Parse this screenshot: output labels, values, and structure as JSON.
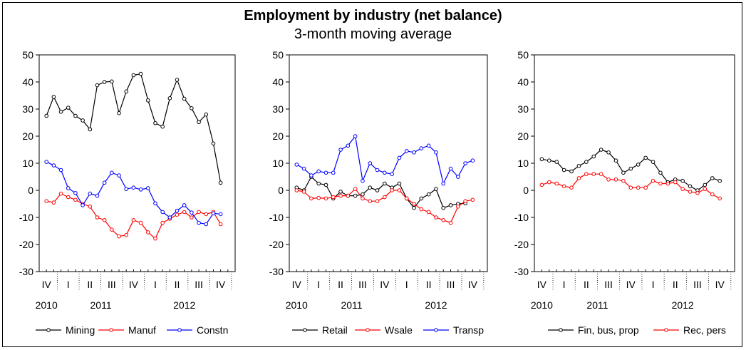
{
  "title": "Employment by industry (net balance)",
  "subtitle": "3-month moving average",
  "colors": {
    "black": "#000000",
    "red": "#ff0000",
    "blue": "#0000ff"
  },
  "chart_data": [
    {
      "type": "line",
      "ylim": [
        -30,
        50
      ],
      "yticks": [
        50,
        40,
        30,
        20,
        10,
        0,
        -10,
        -20,
        -30
      ],
      "x_range": [
        0,
        27
      ],
      "quarter_labels": [
        {
          "label": "IV",
          "x": 1
        },
        {
          "label": "I",
          "x": 4
        },
        {
          "label": "II",
          "x": 7
        },
        {
          "label": "III",
          "x": 10
        },
        {
          "label": "IV",
          "x": 13
        },
        {
          "label": "I",
          "x": 16
        },
        {
          "label": "II",
          "x": 19
        },
        {
          "label": "III",
          "x": 22
        },
        {
          "label": "IV",
          "x": 25
        }
      ],
      "year_labels": [
        {
          "label": "2010",
          "x": 1
        },
        {
          "label": "2011",
          "x": 8.5
        },
        {
          "label": "2012",
          "x": 20
        }
      ],
      "series": [
        {
          "name": "Mining",
          "color": "#000000",
          "values": [
            27.5,
            34.5,
            29,
            30.5,
            27.5,
            25.8,
            22.5,
            38.8,
            40,
            40.2,
            28.5,
            36.5,
            42.5,
            43,
            33.2,
            24.8,
            23.5,
            34,
            40.8,
            33.8,
            30.3,
            25.2,
            28,
            17.3,
            2.8
          ]
        },
        {
          "name": "Manuf",
          "color": "#ff0000",
          "values": [
            -4,
            -4.5,
            -1.2,
            -2.5,
            -3.5,
            -5,
            -6,
            -10,
            -11,
            -14.5,
            -17,
            -16.5,
            -11,
            -12,
            -15.5,
            -17.8,
            -12,
            -10.5,
            -9,
            -8,
            -10,
            -8,
            -8.8,
            -8,
            -12.5
          ]
        },
        {
          "name": "Constn",
          "color": "#0000ff",
          "values": [
            10.5,
            9.2,
            7.5,
            0.8,
            -1,
            -5.5,
            -1.2,
            -2,
            2.8,
            6.5,
            5.5,
            0.5,
            1,
            0.3,
            0.8,
            -4.8,
            -8,
            -10,
            -7.5,
            -5.5,
            -8.2,
            -12,
            -12.5,
            -8.5,
            -8.8
          ]
        }
      ]
    },
    {
      "type": "line",
      "ylim": [
        -30,
        50
      ],
      "yticks": [
        50,
        40,
        30,
        20,
        10,
        0,
        -10,
        -20,
        -30
      ],
      "x_range": [
        0,
        27
      ],
      "quarter_labels": [
        {
          "label": "IV",
          "x": 1
        },
        {
          "label": "I",
          "x": 4
        },
        {
          "label": "II",
          "x": 7
        },
        {
          "label": "III",
          "x": 10
        },
        {
          "label": "IV",
          "x": 13
        },
        {
          "label": "I",
          "x": 16
        },
        {
          "label": "II",
          "x": 19
        },
        {
          "label": "III",
          "x": 22
        },
        {
          "label": "IV",
          "x": 25
        }
      ],
      "year_labels": [
        {
          "label": "2010",
          "x": 1
        },
        {
          "label": "2011",
          "x": 8.5
        },
        {
          "label": "2012",
          "x": 20
        }
      ],
      "series": [
        {
          "name": "Retail",
          "color": "#000000",
          "values": [
            1,
            0,
            5,
            2.5,
            2,
            -3,
            -0.5,
            -2,
            -2,
            -1.5,
            1,
            0,
            2.5,
            1,
            2.5,
            -3,
            -6.5,
            -3,
            -1.5,
            0.5,
            -6.5,
            -5.5,
            -5,
            -4.8
          ]
        },
        {
          "name": "Wsale",
          "color": "#ff0000",
          "values": [
            0,
            -0.5,
            -3,
            -2.8,
            -3,
            -2.5,
            -2,
            -2,
            0.5,
            -3,
            -4,
            -4,
            -2.5,
            0,
            0,
            -3,
            -5,
            -7,
            -8,
            -10,
            -11,
            -12,
            -6,
            -4,
            -3.5
          ]
        },
        {
          "name": "Transp",
          "color": "#0000ff",
          "values": [
            9.5,
            8,
            5.5,
            7,
            6.5,
            6.5,
            15,
            16.5,
            20,
            3.5,
            10,
            7.5,
            6.5,
            6,
            12,
            14.5,
            14,
            15.5,
            16.5,
            14,
            2.5,
            8,
            5,
            10,
            11
          ]
        }
      ]
    },
    {
      "type": "line",
      "ylim": [
        -30,
        50
      ],
      "yticks": [
        50,
        40,
        30,
        20,
        10,
        0,
        -10,
        -20,
        -30
      ],
      "x_range": [
        0,
        27
      ],
      "quarter_labels": [
        {
          "label": "IV",
          "x": 1
        },
        {
          "label": "I",
          "x": 4
        },
        {
          "label": "II",
          "x": 7
        },
        {
          "label": "III",
          "x": 10
        },
        {
          "label": "IV",
          "x": 13
        },
        {
          "label": "I",
          "x": 16
        },
        {
          "label": "II",
          "x": 19
        },
        {
          "label": "III",
          "x": 22
        },
        {
          "label": "IV",
          "x": 25
        }
      ],
      "year_labels": [
        {
          "label": "2010",
          "x": 1
        },
        {
          "label": "2011",
          "x": 8.5
        },
        {
          "label": "2012",
          "x": 20
        }
      ],
      "series": [
        {
          "name": "Fin, bus, prop",
          "color": "#000000",
          "values": [
            11.5,
            11,
            10.5,
            7.5,
            7,
            9,
            10.5,
            12.5,
            15,
            14,
            11,
            6.5,
            8,
            9.5,
            12,
            10.5,
            6.5,
            3,
            4,
            3.5,
            1.5,
            0,
            2,
            4.5,
            3.5
          ]
        },
        {
          "name": "Rec, pers",
          "color": "#ff0000",
          "values": [
            2,
            3,
            2.5,
            1.5,
            1,
            4.5,
            6,
            6,
            6,
            4,
            4,
            3.5,
            1,
            1,
            1,
            3.5,
            2.5,
            2.5,
            3,
            0.5,
            -0.5,
            -1,
            0.5,
            -1.5,
            -3
          ]
        }
      ]
    }
  ]
}
